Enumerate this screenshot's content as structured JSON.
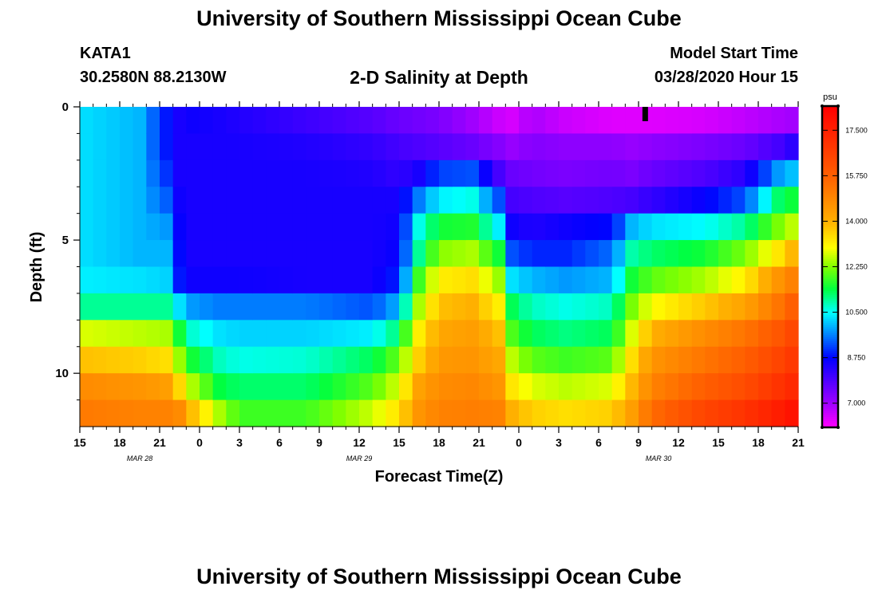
{
  "header": {
    "title": "University of Southern Mississippi Ocean Cube",
    "station": "KATA1",
    "coords": "30.2580N 88.2130W",
    "subtitle": "2-D Salinity at Depth",
    "model_label": "Model Start Time",
    "model_time": "03/28/2020 Hour 15"
  },
  "footer": {
    "title": "University of Southern Mississippi Ocean Cube"
  },
  "chart_data": {
    "type": "heatmap",
    "title": "2-D Salinity at Depth",
    "xlabel": "Forecast Time(Z)",
    "ylabel": "Depth (ft)",
    "x_hours": [
      0,
      54
    ],
    "xticks": [
      {
        "h": 0,
        "label": "15"
      },
      {
        "h": 3,
        "label": "18"
      },
      {
        "h": 6,
        "label": "21"
      },
      {
        "h": 9,
        "label": "0"
      },
      {
        "h": 12,
        "label": "3"
      },
      {
        "h": 15,
        "label": "6"
      },
      {
        "h": 18,
        "label": "9"
      },
      {
        "h": 21,
        "label": "12"
      },
      {
        "h": 24,
        "label": "15"
      },
      {
        "h": 27,
        "label": "18"
      },
      {
        "h": 30,
        "label": "21"
      },
      {
        "h": 33,
        "label": "0"
      },
      {
        "h": 36,
        "label": "3"
      },
      {
        "h": 39,
        "label": "6"
      },
      {
        "h": 42,
        "label": "9"
      },
      {
        "h": 45,
        "label": "12"
      },
      {
        "h": 48,
        "label": "15"
      },
      {
        "h": 51,
        "label": "18"
      },
      {
        "h": 54,
        "label": "21"
      }
    ],
    "date_labels": [
      {
        "h": 4.5,
        "label": "MAR  28"
      },
      {
        "h": 21,
        "label": "MAR  29"
      },
      {
        "h": 43.5,
        "label": "MAR  30"
      }
    ],
    "ylim": [
      0,
      12
    ],
    "yticks": [
      {
        "v": 0,
        "label": "0"
      },
      {
        "v": 5,
        "label": "5"
      },
      {
        "v": 10,
        "label": "10"
      }
    ],
    "y_minor": [
      1,
      2,
      3,
      4,
      6,
      7,
      8,
      9,
      11
    ],
    "x_minor_step": 1,
    "layers": 12,
    "current_time_marker_hour": 42.5,
    "colorbar": {
      "unit": "psu",
      "min": 6.1,
      "max": 18.4,
      "ticks": [
        {
          "v": 7.0,
          "label": "7.000"
        },
        {
          "v": 8.75,
          "label": "8.750"
        },
        {
          "v": 10.5,
          "label": "10.500"
        },
        {
          "v": 12.25,
          "label": "12.250"
        },
        {
          "v": 14.0,
          "label": "14.000"
        },
        {
          "v": 15.75,
          "label": "15.750"
        },
        {
          "v": 17.5,
          "label": "17.500"
        }
      ],
      "stops": [
        {
          "v": 6.1,
          "color": "#ff00ff"
        },
        {
          "v": 7.0,
          "color": "#a000ff"
        },
        {
          "v": 8.75,
          "color": "#0000ff"
        },
        {
          "v": 10.5,
          "color": "#00ffff"
        },
        {
          "v": 11.4,
          "color": "#00ff40"
        },
        {
          "v": 12.25,
          "color": "#80ff00"
        },
        {
          "v": 13.0,
          "color": "#ffff00"
        },
        {
          "v": 14.0,
          "color": "#ffb000"
        },
        {
          "v": 15.75,
          "color": "#ff6000"
        },
        {
          "v": 18.4,
          "color": "#ff0000"
        }
      ]
    },
    "keyframes": [
      {
        "h": 0,
        "values": [
          10.3,
          10.3,
          10.3,
          10.3,
          10.3,
          10.3,
          10.4,
          11.0,
          12.8,
          13.8,
          14.8,
          15.2
        ]
      },
      {
        "h": 4.5,
        "values": [
          10.0,
          10.0,
          10.0,
          10.0,
          10.0,
          10.0,
          10.3,
          11.0,
          12.6,
          13.6,
          14.6,
          15.0
        ]
      },
      {
        "h": 6.5,
        "values": [
          8.9,
          8.9,
          9.1,
          9.4,
          9.8,
          10.0,
          10.2,
          11.0,
          12.5,
          13.4,
          14.4,
          15.0
        ]
      },
      {
        "h": 7.5,
        "values": [
          8.5,
          8.5,
          8.5,
          8.6,
          8.7,
          8.8,
          8.9,
          10.3,
          11.5,
          12.4,
          13.5,
          14.8
        ]
      },
      {
        "h": 8.5,
        "values": [
          8.6,
          8.5,
          8.5,
          8.5,
          8.5,
          8.5,
          8.6,
          9.8,
          10.7,
          11.5,
          12.5,
          13.8
        ]
      },
      {
        "h": 10.5,
        "values": [
          8.5,
          8.5,
          8.5,
          8.5,
          8.5,
          8.5,
          8.6,
          9.6,
          10.3,
          10.8,
          11.4,
          12.5
        ]
      },
      {
        "h": 12,
        "values": [
          8.4,
          8.5,
          8.5,
          8.5,
          8.5,
          8.5,
          8.6,
          9.6,
          10.2,
          10.6,
          11.2,
          11.8
        ]
      },
      {
        "h": 17,
        "values": [
          8.1,
          8.4,
          8.5,
          8.5,
          8.5,
          8.5,
          8.5,
          9.6,
          10.2,
          10.7,
          11.2,
          11.8
        ]
      },
      {
        "h": 22,
        "values": [
          7.8,
          8.2,
          8.4,
          8.5,
          8.5,
          8.5,
          8.5,
          9.3,
          10.4,
          11.3,
          12.0,
          12.7
        ]
      },
      {
        "h": 24,
        "values": [
          7.6,
          8.0,
          8.2,
          8.5,
          8.6,
          8.7,
          9.0,
          10.0,
          11.2,
          12.1,
          12.8,
          13.4
        ]
      },
      {
        "h": 25.5,
        "values": [
          7.5,
          7.9,
          8.5,
          9.6,
          10.6,
          11.0,
          11.8,
          12.5,
          13.2,
          13.6,
          14.3,
          14.6
        ]
      },
      {
        "h": 27,
        "values": [
          7.4,
          7.8,
          9.2,
          10.4,
          11.5,
          12.3,
          13.2,
          13.8,
          14.2,
          14.5,
          14.8,
          15.0
        ]
      },
      {
        "h": 29.5,
        "values": [
          7.0,
          7.6,
          9.3,
          10.6,
          11.6,
          12.5,
          13.4,
          14.0,
          14.4,
          14.6,
          14.9,
          15.1
        ]
      },
      {
        "h": 31.5,
        "values": [
          6.6,
          7.3,
          8.0,
          9.3,
          10.4,
          11.5,
          12.4,
          13.2,
          13.8,
          14.2,
          14.6,
          15.0
        ]
      },
      {
        "h": 32.5,
        "values": [
          6.5,
          7.1,
          7.6,
          8.0,
          8.6,
          9.3,
          10.3,
          11.3,
          11.9,
          12.6,
          13.3,
          14.0
        ]
      },
      {
        "h": 34,
        "values": [
          6.9,
          7.3,
          7.5,
          7.9,
          8.4,
          9.0,
          10.0,
          10.8,
          11.3,
          12.0,
          12.8,
          13.6
        ]
      },
      {
        "h": 36.5,
        "values": [
          6.6,
          7.2,
          7.4,
          7.8,
          8.6,
          9.0,
          9.8,
          10.6,
          11.1,
          11.8,
          12.6,
          13.4
        ]
      },
      {
        "h": 40,
        "values": [
          6.4,
          7.2,
          7.5,
          7.9,
          8.8,
          9.5,
          10.0,
          10.8,
          11.3,
          12.0,
          12.8,
          13.6
        ]
      },
      {
        "h": 41.5,
        "values": [
          6.4,
          7.1,
          7.4,
          8.0,
          10.0,
          10.9,
          11.5,
          12.2,
          12.8,
          13.4,
          13.9,
          14.4
        ]
      },
      {
        "h": 43,
        "values": [
          6.4,
          7.2,
          7.6,
          8.2,
          10.3,
          11.2,
          12.0,
          13.0,
          14.0,
          14.6,
          15.0,
          15.5
        ]
      },
      {
        "h": 47,
        "values": [
          6.5,
          7.4,
          7.9,
          8.7,
          10.5,
          11.5,
          12.5,
          13.7,
          14.8,
          15.3,
          15.8,
          16.5
        ]
      },
      {
        "h": 50,
        "values": [
          6.7,
          7.6,
          8.3,
          9.3,
          11.0,
          12.2,
          13.2,
          14.3,
          15.3,
          15.8,
          16.3,
          17.0
        ]
      },
      {
        "h": 52.5,
        "values": [
          6.9,
          8.0,
          9.8,
          11.2,
          12.2,
          13.3,
          14.6,
          15.3,
          16.0,
          16.5,
          17.0,
          17.6
        ]
      },
      {
        "h": 54,
        "values": [
          7.0,
          8.4,
          10.2,
          11.6,
          12.8,
          14.2,
          15.2,
          16.0,
          16.6,
          17.0,
          17.4,
          18.0
        ]
      }
    ]
  }
}
